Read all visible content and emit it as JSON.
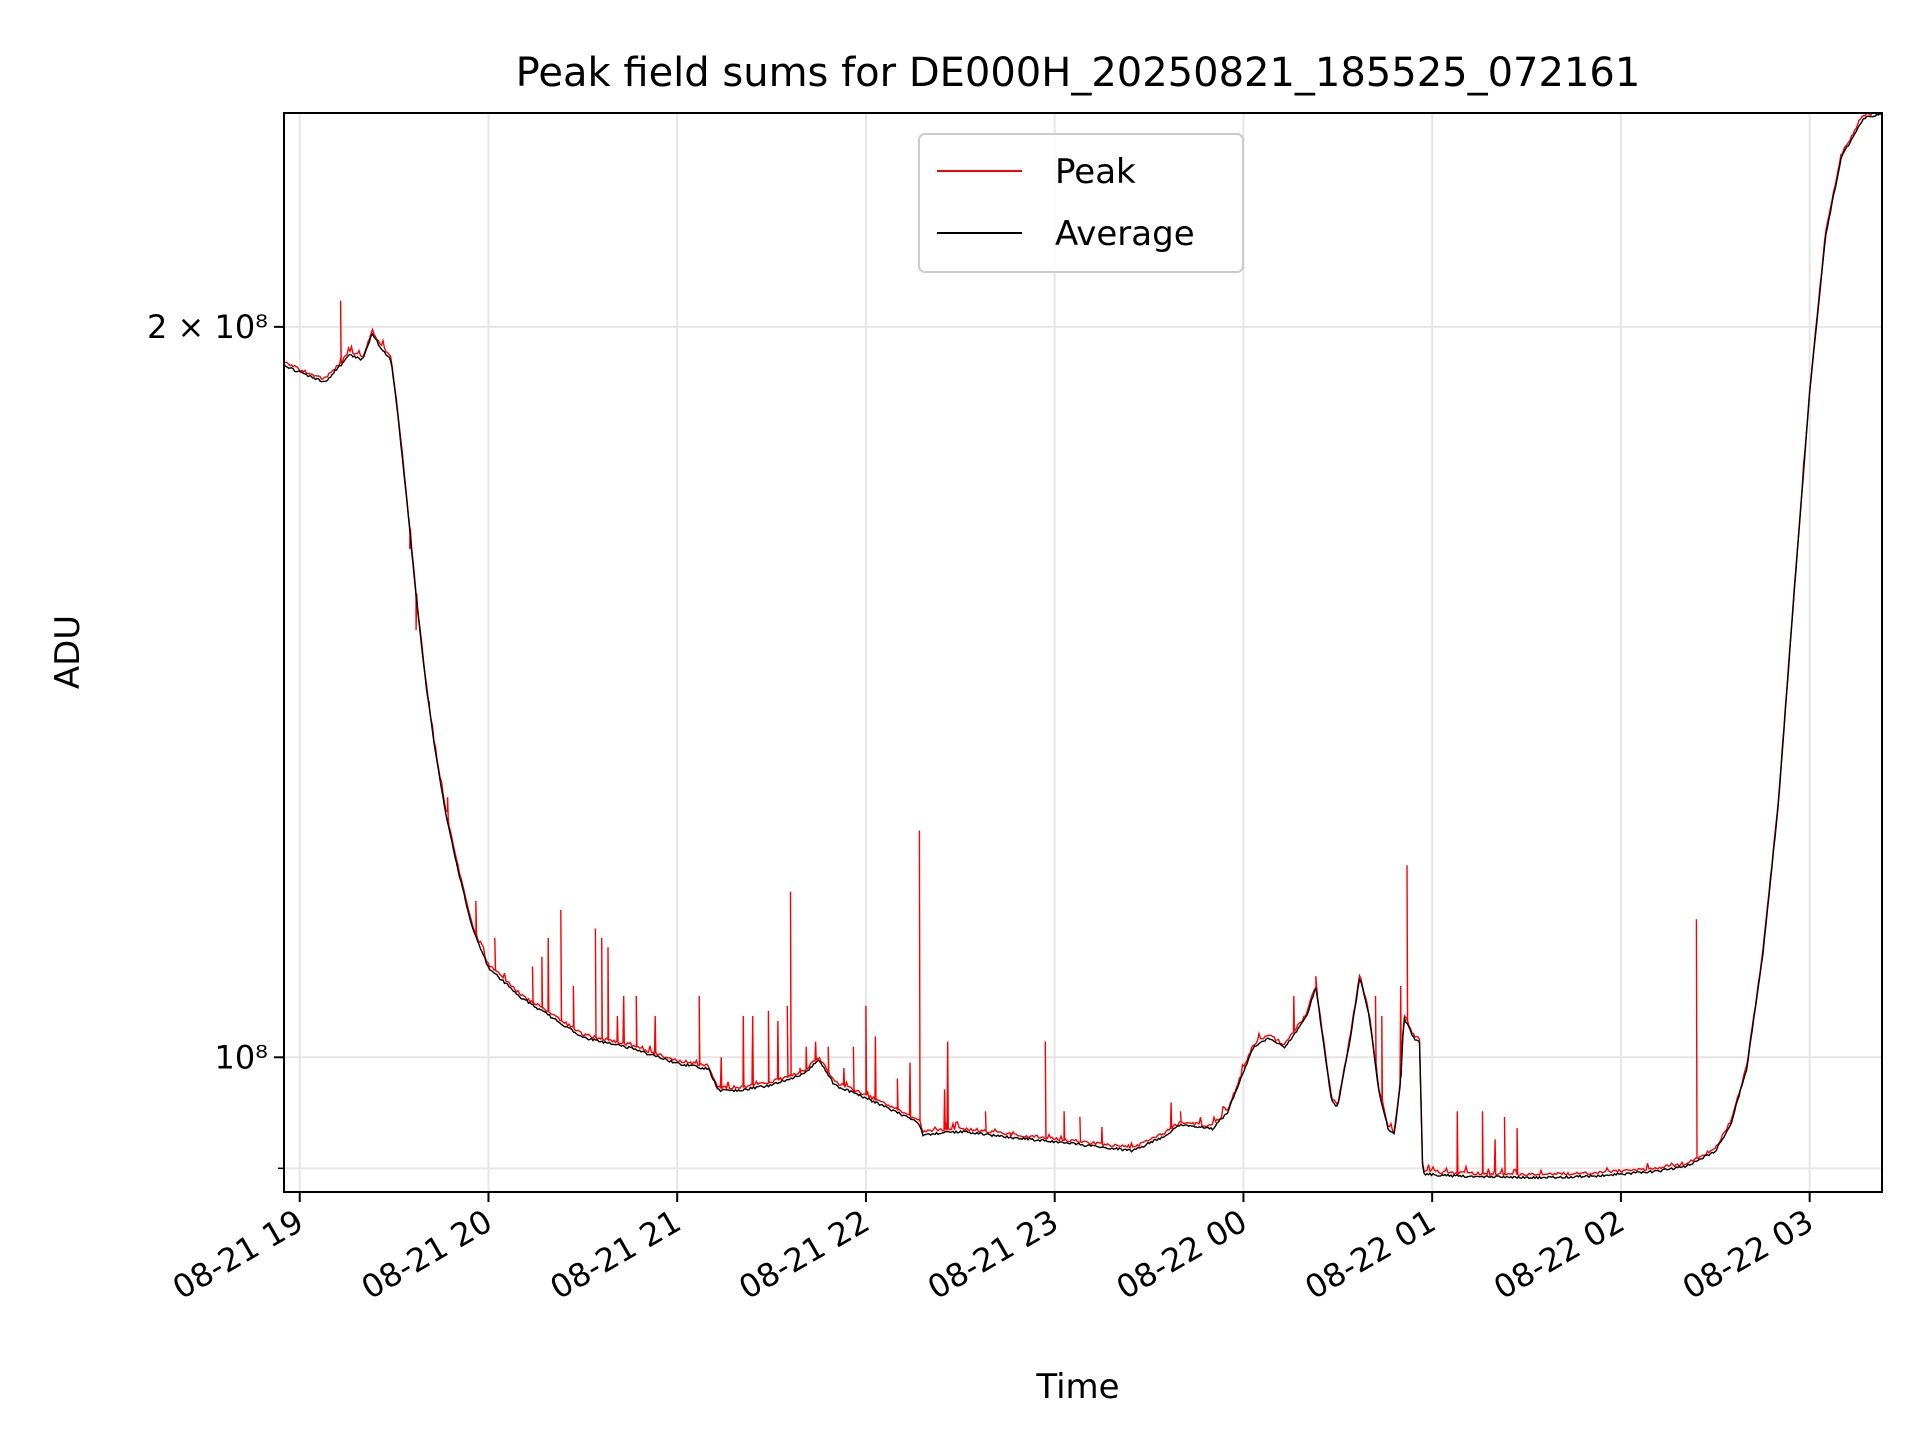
{
  "chart_data": {
    "type": "line",
    "title": "Peak field sums for DE000H_20250821_185525_072161",
    "xlabel": "Time",
    "ylabel": "ADU",
    "yscale": "log",
    "xlim": [
      "2025-08-21 18:55",
      "2025-08-22 03:23"
    ],
    "ylim": [
      88000000,
      245000000
    ],
    "grid": true,
    "legend": {
      "position": "top-center",
      "entries": [
        "Peak",
        "Average"
      ]
    },
    "xticks": [
      {
        "t": "2025-08-21 19:00",
        "label": "08-21 19"
      },
      {
        "t": "2025-08-21 20:00",
        "label": "08-21 20"
      },
      {
        "t": "2025-08-21 21:00",
        "label": "08-21 21"
      },
      {
        "t": "2025-08-21 22:00",
        "label": "08-21 22"
      },
      {
        "t": "2025-08-21 23:00",
        "label": "08-21 23"
      },
      {
        "t": "2025-08-22 00:00",
        "label": "08-22 00"
      },
      {
        "t": "2025-08-22 01:00",
        "label": "08-22 01"
      },
      {
        "t": "2025-08-22 02:00",
        "label": "08-22 02"
      },
      {
        "t": "2025-08-22 03:00",
        "label": "08-22 03"
      }
    ],
    "yticks": [
      {
        "v": 200000000,
        "label": "2 × 10⁸"
      },
      {
        "v": 100000000,
        "label": "10⁸"
      }
    ],
    "yminor": [
      90000000
    ],
    "series": [
      {
        "name": "Average",
        "color": "#000000",
        "points": [
          [
            "2025-08-21 18:55",
            193000000
          ],
          [
            "2025-08-21 19:03",
            191000000
          ],
          [
            "2025-08-21 19:08",
            190000000
          ],
          [
            "2025-08-21 19:13",
            193000000
          ],
          [
            "2025-08-21 19:16",
            195000000
          ],
          [
            "2025-08-21 19:20",
            194000000
          ],
          [
            "2025-08-21 19:23",
            199000000
          ],
          [
            "2025-08-21 19:26",
            196000000
          ],
          [
            "2025-08-21 19:29",
            194000000
          ],
          [
            "2025-08-21 19:31",
            185000000
          ],
          [
            "2025-08-21 19:34",
            170000000
          ],
          [
            "2025-08-21 19:37",
            155000000
          ],
          [
            "2025-08-21 19:40",
            143000000
          ],
          [
            "2025-08-21 19:43",
            134000000
          ],
          [
            "2025-08-21 19:46",
            127000000
          ],
          [
            "2025-08-21 19:50",
            120000000
          ],
          [
            "2025-08-21 19:55",
            113000000
          ],
          [
            "2025-08-21 20:00",
            109000000
          ],
          [
            "2025-08-21 20:10",
            106000000
          ],
          [
            "2025-08-21 20:20",
            104000000
          ],
          [
            "2025-08-21 20:30",
            102000000
          ],
          [
            "2025-08-21 20:45",
            101000000
          ],
          [
            "2025-08-21 21:00",
            99500000
          ],
          [
            "2025-08-21 21:10",
            99000000
          ],
          [
            "2025-08-21 21:13",
            97000000
          ],
          [
            "2025-08-21 21:20",
            97000000
          ],
          [
            "2025-08-21 21:30",
            97500000
          ],
          [
            "2025-08-21 21:40",
            98500000
          ],
          [
            "2025-08-21 21:45",
            99800000
          ],
          [
            "2025-08-21 21:50",
            97500000
          ],
          [
            "2025-08-21 22:00",
            96300000
          ],
          [
            "2025-08-21 22:10",
            95000000
          ],
          [
            "2025-08-21 22:17",
            94000000
          ],
          [
            "2025-08-21 22:18",
            93000000
          ],
          [
            "2025-08-21 22:30",
            93300000
          ],
          [
            "2025-08-21 22:45",
            92800000
          ],
          [
            "2025-08-21 23:00",
            92400000
          ],
          [
            "2025-08-21 23:15",
            91900000
          ],
          [
            "2025-08-21 23:25",
            91600000
          ],
          [
            "2025-08-21 23:35",
            92900000
          ],
          [
            "2025-08-21 23:40",
            93900000
          ],
          [
            "2025-08-21 23:50",
            93500000
          ],
          [
            "2025-08-21 23:55",
            95000000
          ],
          [
            "2025-08-22 00:03",
            101000000
          ],
          [
            "2025-08-22 00:08",
            102000000
          ],
          [
            "2025-08-22 00:13",
            101000000
          ],
          [
            "2025-08-22 00:20",
            104000000
          ],
          [
            "2025-08-22 00:23",
            107000000
          ],
          [
            "2025-08-22 00:28",
            96000000
          ],
          [
            "2025-08-22 00:30",
            95500000
          ],
          [
            "2025-08-22 00:34",
            102000000
          ],
          [
            "2025-08-22 00:37",
            108000000
          ],
          [
            "2025-08-22 00:40",
            104000000
          ],
          [
            "2025-08-22 00:43",
            97000000
          ],
          [
            "2025-08-22 00:46",
            93500000
          ],
          [
            "2025-08-22 00:48",
            93000000
          ],
          [
            "2025-08-22 00:50",
            98000000
          ],
          [
            "2025-08-22 00:51",
            104000000
          ],
          [
            "2025-08-22 00:54",
            102000000
          ],
          [
            "2025-08-22 00:56",
            101500000
          ],
          [
            "2025-08-22 00:57",
            89600000
          ],
          [
            "2025-08-22 01:10",
            89400000
          ],
          [
            "2025-08-22 01:30",
            89300000
          ],
          [
            "2025-08-22 01:50",
            89400000
          ],
          [
            "2025-08-22 02:10",
            89800000
          ],
          [
            "2025-08-22 02:20",
            90200000
          ],
          [
            "2025-08-22 02:30",
            91500000
          ],
          [
            "2025-08-22 02:35",
            94000000
          ],
          [
            "2025-08-22 02:40",
            99000000
          ],
          [
            "2025-08-22 02:45",
            110000000
          ],
          [
            "2025-08-22 02:50",
            127000000
          ],
          [
            "2025-08-22 02:55",
            155000000
          ],
          [
            "2025-08-22 03:00",
            188000000
          ],
          [
            "2025-08-22 03:05",
            218000000
          ],
          [
            "2025-08-22 03:10",
            235000000
          ],
          [
            "2025-08-22 03:17",
            244000000
          ],
          [
            "2025-08-22 03:23",
            245000000
          ]
        ]
      },
      {
        "name": "Peak",
        "color": "#ff0000",
        "spikes": [
          [
            "2025-08-21 19:13",
            205000000
          ],
          [
            "2025-08-21 19:35",
            162000000
          ],
          [
            "2025-08-21 19:37",
            150000000
          ],
          [
            "2025-08-21 19:41",
            140000000
          ],
          [
            "2025-08-21 19:47",
            128000000
          ],
          [
            "2025-08-21 19:56",
            116000000
          ],
          [
            "2025-08-21 20:02",
            112000000
          ],
          [
            "2025-08-21 20:14",
            109000000
          ],
          [
            "2025-08-21 20:17",
            110000000
          ],
          [
            "2025-08-21 20:19",
            112000000
          ],
          [
            "2025-08-21 20:23",
            115000000
          ],
          [
            "2025-08-21 20:27",
            107000000
          ],
          [
            "2025-08-21 20:34",
            113000000
          ],
          [
            "2025-08-21 20:36",
            112000000
          ],
          [
            "2025-08-21 20:38",
            111000000
          ],
          [
            "2025-08-21 20:41",
            104000000
          ],
          [
            "2025-08-21 20:43",
            106000000
          ],
          [
            "2025-08-21 20:47",
            106000000
          ],
          [
            "2025-08-21 20:53",
            104000000
          ],
          [
            "2025-08-21 21:07",
            106000000
          ],
          [
            "2025-08-21 21:14",
            100000000
          ],
          [
            "2025-08-21 21:21",
            104000000
          ],
          [
            "2025-08-21 21:24",
            104000000
          ],
          [
            "2025-08-21 21:29",
            104500000
          ],
          [
            "2025-08-21 21:32",
            103500000
          ],
          [
            "2025-08-21 21:35",
            105000000
          ],
          [
            "2025-08-21 21:36",
            117000000
          ],
          [
            "2025-08-21 21:39",
            99000000
          ],
          [
            "2025-08-21 21:41",
            101000000
          ],
          [
            "2025-08-21 21:44",
            101500000
          ],
          [
            "2025-08-21 21:48",
            101000000
          ],
          [
            "2025-08-21 21:53",
            99000000
          ],
          [
            "2025-08-21 21:56",
            101000000
          ],
          [
            "2025-08-21 22:00",
            105000000
          ],
          [
            "2025-08-21 22:03",
            102000000
          ],
          [
            "2025-08-21 22:10",
            98000000
          ],
          [
            "2025-08-21 22:14",
            99500000
          ],
          [
            "2025-08-21 22:17",
            124000000
          ],
          [
            "2025-08-21 22:25",
            97000000
          ],
          [
            "2025-08-21 22:26",
            101500000
          ],
          [
            "2025-08-21 22:38",
            95000000
          ],
          [
            "2025-08-21 22:46",
            92800000
          ],
          [
            "2025-08-21 22:57",
            101500000
          ],
          [
            "2025-08-21 23:03",
            95000000
          ],
          [
            "2025-08-21 23:08",
            94500000
          ],
          [
            "2025-08-21 23:15",
            93600000
          ],
          [
            "2025-08-21 23:37",
            95800000
          ],
          [
            "2025-08-21 23:40",
            95000000
          ],
          [
            "2025-08-22 00:16",
            106000000
          ],
          [
            "2025-08-22 00:23",
            108000000
          ],
          [
            "2025-08-22 00:42",
            106000000
          ],
          [
            "2025-08-22 00:44",
            104000000
          ],
          [
            "2025-08-22 00:50",
            107000000
          ],
          [
            "2025-08-22 00:52",
            120000000
          ],
          [
            "2025-08-22 01:08",
            95000000
          ],
          [
            "2025-08-22 01:16",
            95000000
          ],
          [
            "2025-08-22 01:20",
            92500000
          ],
          [
            "2025-08-22 01:23",
            94500000
          ],
          [
            "2025-08-22 01:27",
            93500000
          ],
          [
            "2025-08-22 02:24",
            114000000
          ]
        ]
      }
    ]
  }
}
